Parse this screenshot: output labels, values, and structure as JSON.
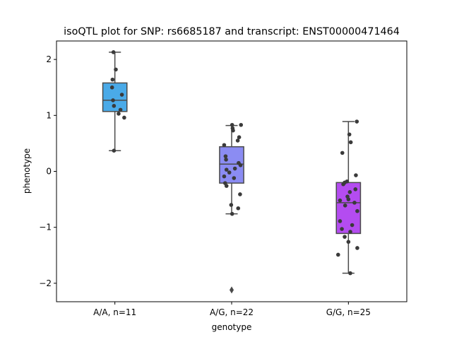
{
  "chart_data": {
    "type": "box",
    "title": "isoQTL plot for SNP: rs6685187 and transcript: ENST00000471464",
    "xlabel": "genotype",
    "ylabel": "phenotype",
    "ylim": [
      -2.33,
      2.33
    ],
    "yticks": [
      -2,
      -1,
      0,
      1,
      2
    ],
    "grid": false,
    "categories": [
      "A/A, n=11",
      "A/G, n=22",
      "G/G, n=25"
    ],
    "boxes": [
      {
        "q1": 1.07,
        "median": 1.27,
        "q3": 1.58,
        "whisker_low": 0.37,
        "whisker_high": 2.13,
        "outliers": [],
        "color": "#4aaae8"
      },
      {
        "q1": -0.21,
        "median": 0.13,
        "q3": 0.44,
        "whisker_low": -0.76,
        "whisker_high": 0.82,
        "outliers": [
          -2.12
        ],
        "color": "#8b8cf3"
      },
      {
        "q1": -1.11,
        "median": -0.56,
        "q3": -0.2,
        "whisker_low": -1.82,
        "whisker_high": 0.89,
        "outliers": [],
        "color": "#b44cf0"
      }
    ],
    "points": [
      [
        [
          -0.03,
          2.13
        ],
        [
          0.02,
          1.82
        ],
        [
          -0.05,
          1.64
        ],
        [
          -0.06,
          1.5
        ],
        [
          0.15,
          1.37
        ],
        [
          -0.04,
          1.27
        ],
        [
          -0.02,
          1.17
        ],
        [
          0.12,
          1.1
        ],
        [
          0.08,
          1.03
        ],
        [
          0.2,
          0.96
        ],
        [
          -0.02,
          0.37
        ]
      ],
      [
        [
          0.01,
          0.83
        ],
        [
          0.2,
          0.83
        ],
        [
          0.02,
          0.77
        ],
        [
          0.03,
          0.73
        ],
        [
          0.16,
          0.61
        ],
        [
          0.13,
          0.55
        ],
        [
          -0.16,
          0.47
        ],
        [
          -0.13,
          0.27
        ],
        [
          -0.12,
          0.21
        ],
        [
          0.15,
          0.15
        ],
        [
          0.19,
          0.11
        ],
        [
          -0.11,
          0.03
        ],
        [
          0.07,
          0.05
        ],
        [
          -0.05,
          -0.02
        ],
        [
          -0.16,
          -0.09
        ],
        [
          -0.14,
          -0.21
        ],
        [
          -0.11,
          -0.26
        ],
        [
          0.18,
          -0.41
        ],
        [
          -0.01,
          -0.6
        ],
        [
          0.14,
          -0.66
        ],
        [
          0.01,
          -0.76
        ],
        [
          0.05,
          -0.12
        ]
      ],
      [
        [
          0.18,
          0.89
        ],
        [
          0.02,
          0.66
        ],
        [
          0.05,
          0.52
        ],
        [
          -0.13,
          0.33
        ],
        [
          0.16,
          -0.07
        ],
        [
          -0.03,
          -0.18
        ],
        [
          -0.08,
          -0.2
        ],
        [
          -0.11,
          -0.23
        ],
        [
          0.15,
          -0.32
        ],
        [
          0.03,
          -0.37
        ],
        [
          -0.02,
          -0.45
        ],
        [
          0.0,
          -0.5
        ],
        [
          -0.18,
          -0.52
        ],
        [
          0.13,
          -0.56
        ],
        [
          -0.07,
          -0.61
        ],
        [
          0.19,
          -0.71
        ],
        [
          -0.18,
          -0.89
        ],
        [
          0.08,
          -0.96
        ],
        [
          -0.14,
          -1.03
        ],
        [
          0.04,
          -1.08
        ],
        [
          -0.08,
          -1.17
        ],
        [
          0.0,
          -1.26
        ],
        [
          0.19,
          -1.37
        ],
        [
          -0.22,
          -1.49
        ],
        [
          0.04,
          -1.82
        ]
      ]
    ]
  }
}
